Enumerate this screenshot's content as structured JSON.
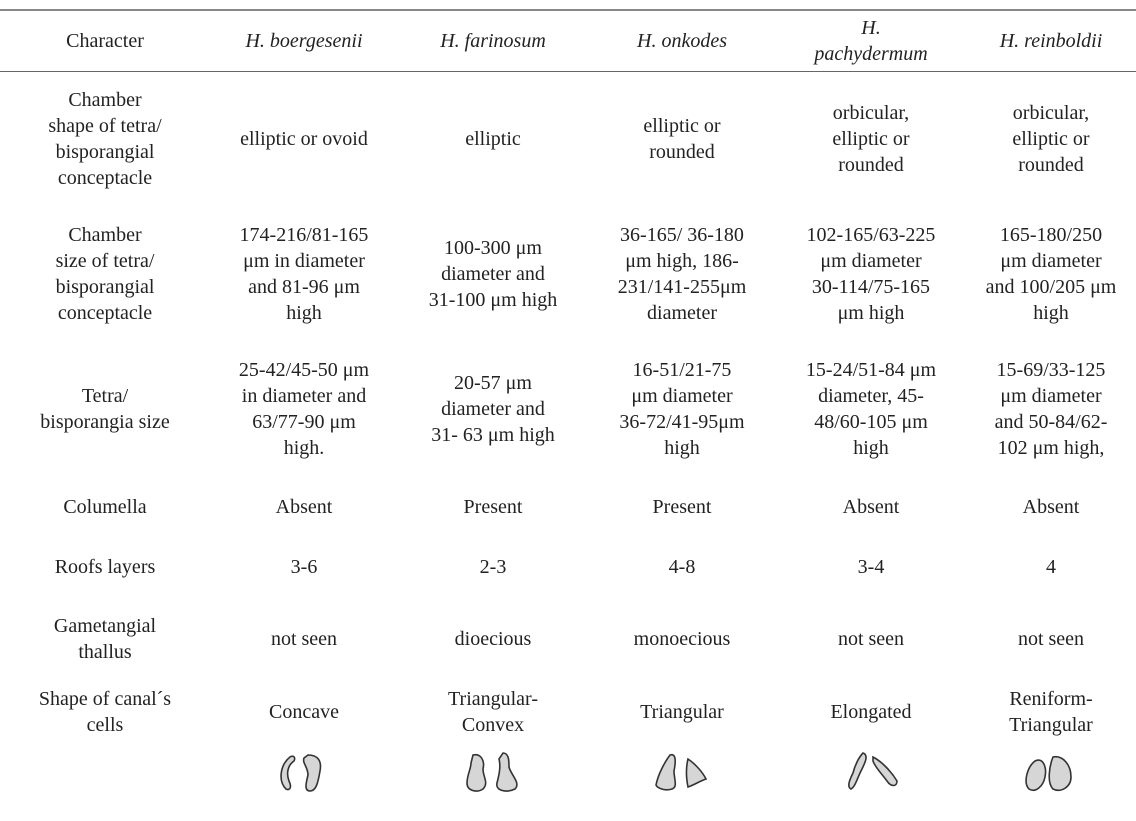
{
  "header": {
    "columns": [
      "Character",
      "H. boergesenii",
      "H. farinosum",
      "H. onkodes",
      "H.\npachydermum",
      "H. reinboldii"
    ]
  },
  "rows": [
    {
      "label": "Chamber\nshape of tetra/\nbisporangial\nconceptacle",
      "cells": [
        "elliptic or ovoid",
        "elliptic",
        "elliptic or\nrounded",
        "orbicular,\nelliptic or\nrounded",
        "orbicular,\nelliptic or\nrounded"
      ]
    },
    {
      "label": "Chamber\nsize of tetra/\nbisporangial\nconceptacle",
      "cells": [
        "174-216/81-165\nμm in diameter\nand 81-96 μm\nhigh",
        "100-300 μm\ndiameter and\n31-100 μm high",
        "36-165/ 36-180\nμm high, 186-\n231/141-255μm\ndiameter",
        "102-165/63-225\nμm diameter\n30-114/75-165\nμm high",
        "165-180/250\nμm diameter\nand 100/205 μm\nhigh"
      ]
    },
    {
      "label": "Tetra/\nbisporangia size",
      "cells": [
        "25-42/45-50 μm\nin diameter and\n63/77-90 μm\nhigh.",
        "20-57 μm\ndiameter and\n31- 63 μm high",
        "16-51/21-75\nμm diameter\n36-72/41-95μm\nhigh",
        "15-24/51-84 μm\ndiameter, 45-\n48/60-105 μm\nhigh",
        "15-69/33-125\nμm diameter\nand 50-84/62-\n102 μm high,"
      ]
    },
    {
      "label": "Columella",
      "cells": [
        "Absent",
        "Present",
        "Present",
        "Absent",
        "Absent"
      ]
    },
    {
      "label": "Roofs layers",
      "cells": [
        "3-6",
        "2-3",
        "4-8",
        "3-4",
        "4"
      ]
    },
    {
      "label": "Gametangial\nthallus",
      "cells": [
        "not seen",
        "dioecious",
        "monoecious",
        "not seen",
        "not seen"
      ]
    },
    {
      "label": "Shape of canal´s\ncells",
      "cells": [
        "Concave",
        "Triangular-\nConvex",
        "Triangular",
        "Elongated",
        "Reniform-\nTriangular"
      ]
    }
  ]
}
